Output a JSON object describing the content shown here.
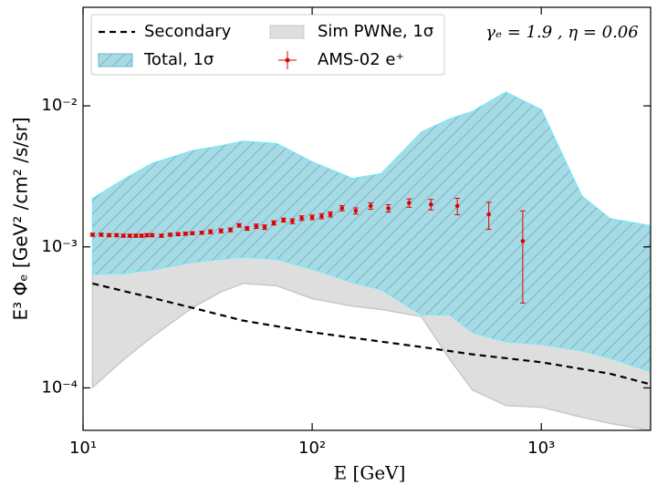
{
  "chart_data": {
    "type": "line",
    "log_x": true,
    "log_y": true,
    "xlabel": "E [GeV]",
    "ylabel": "E³ Φₑ  [GeV² /cm² /s/sr]",
    "annotation": "γₑ = 1.9 ,   η = 0.06",
    "xlim": [
      10,
      3000
    ],
    "ylim": [
      5e-05,
      0.05
    ],
    "xticks": [
      {
        "value": 10,
        "label": "10¹"
      },
      {
        "value": 100,
        "label": "10²"
      },
      {
        "value": 1000,
        "label": "10³"
      }
    ],
    "yticks": [
      {
        "value": 0.0001,
        "label": "10⁻⁴"
      },
      {
        "value": 0.001,
        "label": "10⁻³"
      },
      {
        "value": 0.01,
        "label": "10⁻²"
      }
    ],
    "legend": "upper left",
    "series": [
      {
        "name": "Secondary",
        "type": "line",
        "dash": true,
        "color": "#000000",
        "x": [
          11,
          20,
          30,
          50,
          100,
          200,
          300,
          500,
          1000,
          2000,
          3000
        ],
        "values": [
          0.00055,
          0.000435,
          0.00037,
          0.0003,
          0.000248,
          0.000213,
          0.000195,
          0.000173,
          0.000152,
          0.000126,
          0.000106
        ]
      },
      {
        "name": "Total, 1σ",
        "type": "band",
        "color": "#a6dbe5",
        "edge": "#7ee8f5",
        "hatch": "#5f9aa6",
        "x": [
          11,
          15,
          20,
          30,
          40,
          50,
          70,
          100,
          150,
          200,
          300,
          400,
          500,
          700,
          1000,
          1500,
          2000,
          3000
        ],
        "upper": [
          0.0022,
          0.003,
          0.0039,
          0.0048,
          0.0052,
          0.0056,
          0.0054,
          0.004,
          0.00305,
          0.0033,
          0.0065,
          0.0081,
          0.0091,
          0.0125,
          0.0094,
          0.0023,
          0.00158,
          0.00141
        ],
        "lower": [
          0.00064,
          0.00065,
          0.00069,
          0.00078,
          0.00082,
          0.00085,
          0.00082,
          0.0007,
          0.00056,
          0.0005,
          0.00033,
          0.00033,
          0.000248,
          0.000213,
          0.000204,
          0.000184,
          0.000163,
          0.000131
        ]
      },
      {
        "name": "Sim PWNe, 1σ",
        "type": "band",
        "color": "#dedede",
        "edge": "#c8c8c8",
        "x": [
          11,
          15,
          20,
          30,
          40,
          50,
          70,
          100,
          150,
          200,
          300,
          400,
          500,
          700,
          1000,
          1500,
          2000,
          3000
        ],
        "upper": [
          0.00064,
          0.00065,
          0.00069,
          0.00078,
          0.00082,
          0.00085,
          0.00082,
          0.0007,
          0.00056,
          0.0005,
          0.00033,
          0.00033,
          0.000248,
          0.000213,
          0.000204,
          0.000184,
          0.000163,
          0.000131
        ],
        "lower": [
          0.000101,
          0.000158,
          0.00023,
          0.00037,
          0.00048,
          0.00055,
          0.00053,
          0.00043,
          0.00038,
          0.00036,
          0.00032,
          0.000158,
          9.7e-05,
          7.5e-05,
          7.3e-05,
          6.2e-05,
          5.6e-05,
          5e-05
        ]
      },
      {
        "name": "AMS-02 e⁺",
        "type": "errorbar",
        "color": "#e00000",
        "x": [
          11,
          12,
          13,
          14,
          15,
          16,
          17,
          18,
          19,
          20,
          22,
          24,
          26,
          28,
          30,
          33,
          36,
          40,
          44,
          48,
          52,
          57,
          62,
          68,
          75,
          82,
          90,
          100,
          110,
          120,
          135,
          155,
          180,
          215,
          265,
          330,
          430,
          590,
          830
        ],
        "values": [
          0.00122,
          0.00122,
          0.00121,
          0.00121,
          0.0012,
          0.0012,
          0.0012,
          0.0012,
          0.00121,
          0.00121,
          0.0012,
          0.00122,
          0.00123,
          0.00124,
          0.00125,
          0.00126,
          0.00128,
          0.0013,
          0.00132,
          0.00142,
          0.00135,
          0.0014,
          0.00138,
          0.00148,
          0.00155,
          0.00152,
          0.0016,
          0.00162,
          0.00165,
          0.0017,
          0.00188,
          0.0018,
          0.00195,
          0.00188,
          0.00205,
          0.002,
          0.00195,
          0.0017,
          0.0011
        ],
        "errors": [
          3e-05,
          3e-05,
          3e-05,
          3e-05,
          3e-05,
          3e-05,
          3e-05,
          3e-05,
          3e-05,
          3e-05,
          3e-05,
          3e-05,
          3e-05,
          3e-05,
          3e-05,
          3e-05,
          4e-05,
          4e-05,
          4e-05,
          4e-05,
          4e-05,
          5e-05,
          5e-05,
          5e-05,
          5e-05,
          6e-05,
          6e-05,
          6e-05,
          7e-05,
          7e-05,
          8e-05,
          9e-05,
          0.0001,
          0.00011,
          0.00014,
          0.00017,
          0.00026,
          0.00037,
          0.0007
        ]
      }
    ]
  }
}
